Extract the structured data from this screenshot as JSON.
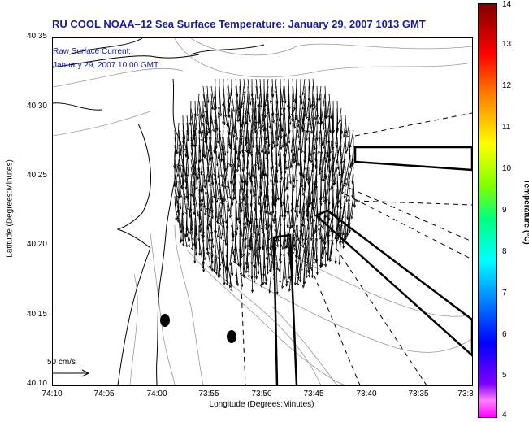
{
  "title": "RU COOL  NOAA–12  Sea Surface Temperature:  January 29, 2007 1013 GMT",
  "current_note": [
    "Raw Surface Current:",
    "January 29, 2007 10:00 GMT"
  ],
  "axes": {
    "ylabel": "Latitude (Degrees:Minutes)",
    "xlabel": "Longitude (Degrees:Minutes)",
    "y_ticks": [
      "40:35",
      "40:30",
      "40:25",
      "40:20",
      "40:15",
      "40:10"
    ],
    "x_ticks": [
      "74:10",
      "74:05",
      "74:00",
      "73:55",
      "73:50",
      "73:45",
      "73:40",
      "73:35",
      "73:3"
    ]
  },
  "scale_label": "50 cm/s",
  "colorbar": {
    "label": "Temperature (°C)",
    "ticks": [
      "14",
      "13",
      "12",
      "11",
      "10",
      "9",
      "8",
      "7",
      "6",
      "5",
      "4"
    ]
  },
  "colors": {
    "title": "#1a1a9a",
    "land_contour": "#000000",
    "bathy": "#888888"
  }
}
